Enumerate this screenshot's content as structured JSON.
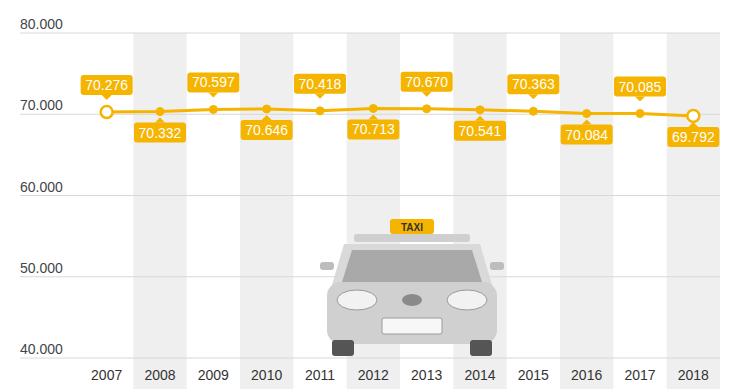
{
  "chart_data": {
    "type": "line",
    "categories": [
      "2007",
      "2008",
      "2009",
      "2010",
      "2011",
      "2012",
      "2013",
      "2014",
      "2015",
      "2016",
      "2017",
      "2018"
    ],
    "values": [
      70276,
      70332,
      70597,
      70646,
      70418,
      70713,
      70670,
      70541,
      70363,
      70084,
      70085,
      69792
    ],
    "value_labels": [
      "70.276",
      "70.332",
      "70.597",
      "70.646",
      "70.418",
      "70.713",
      "70.670",
      "70.541",
      "70.363",
      "70.084",
      "70.085",
      "69.792"
    ],
    "color": "#f5b400",
    "marker": "circle",
    "ylim": [
      40000,
      80000
    ],
    "yticks": [
      {
        "value": 40000,
        "label": "40.000"
      },
      {
        "value": 50000,
        "label": "50.000"
      },
      {
        "value": 60000,
        "label": "60.000"
      },
      {
        "value": 70000,
        "label": "70.000"
      },
      {
        "value": 80000,
        "label": "80.000"
      }
    ],
    "grid": true,
    "data_labels": true,
    "annotations": [
      "TAXI"
    ]
  }
}
